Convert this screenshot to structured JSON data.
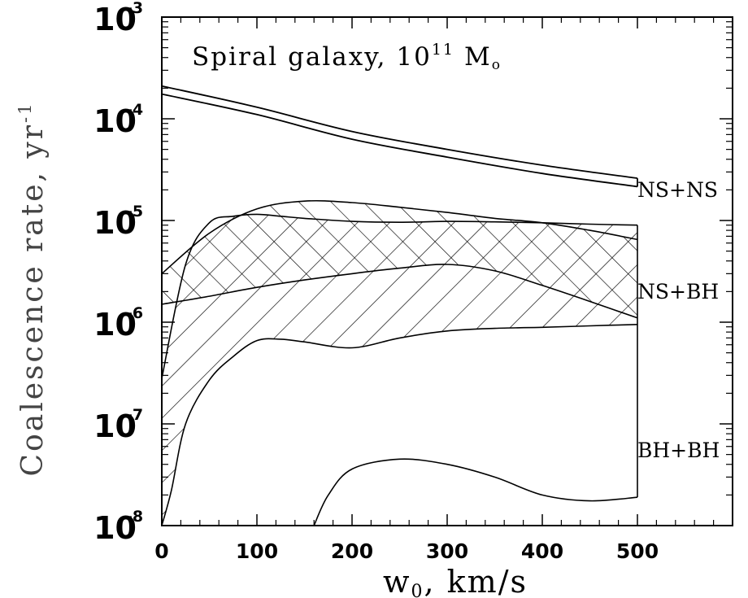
{
  "chart_data": {
    "type": "area",
    "title": "Spiral galaxy, 10",
    "title_sup": "11",
    "title_unit": "M",
    "title_unit_sub": "o",
    "xlabel": "w",
    "xlabel_sub": "0",
    "xlabel_unit": ",  km/s",
    "ylabel": "Coalescence rate,  yr",
    "ylabel_sup": "-1",
    "xlim": [
      0,
      600
    ],
    "ylim": [
      1e-08,
      0.001
    ],
    "yscale": "log",
    "grid": false,
    "xticks": [
      0,
      100,
      200,
      300,
      400,
      500
    ],
    "xtick_labels": [
      "0",
      "100",
      "200",
      "300",
      "400",
      "500"
    ],
    "yticks": [
      1e-08,
      1e-07,
      1e-06,
      1e-05,
      0.0001,
      0.001
    ],
    "ytick_base": "10",
    "ytick_exponents": [
      "-8",
      "-7",
      "-6",
      "-5",
      "-4",
      "-3"
    ],
    "series": [
      {
        "name": "NS+NS",
        "style": "band-outline",
        "upper": {
          "x": [
            0,
            100,
            200,
            300,
            400,
            500
          ],
          "y": [
            0.00021,
            0.00013,
            7.5e-05,
            5e-05,
            3.5e-05,
            2.6e-05
          ]
        },
        "lower": {
          "x": [
            0,
            100,
            200,
            300,
            400,
            500
          ],
          "y": [
            0.000175,
            0.00011,
            6.3e-05,
            4.2e-05,
            2.9e-05,
            2.15e-05
          ]
        }
      },
      {
        "name": "NS+BH",
        "style": "crosshatch",
        "upper": {
          "x": [
            0,
            50,
            100,
            150,
            200,
            250,
            300,
            350,
            400,
            450,
            500
          ],
          "y": [
            3e-06,
            7.5e-06,
            1.3e-05,
            1.55e-05,
            1.5e-05,
            1.35e-05,
            1.2e-05,
            1.05e-05,
            9.5e-06,
            8e-06,
            6.5e-06
          ]
        },
        "lower": {
          "x": [
            0,
            50,
            100,
            150,
            200,
            250,
            300,
            350,
            400,
            450,
            500
          ],
          "y": [
            1.5e-06,
            1.8e-06,
            2.2e-06,
            2.6e-06,
            3e-06,
            3.4e-06,
            3.7e-06,
            3.2e-06,
            2.3e-06,
            1.6e-06,
            1.1e-06
          ]
        }
      },
      {
        "name": "BH+BH",
        "style": "hatch",
        "upper": {
          "x": [
            0,
            25,
            50,
            75,
            100,
            125,
            150,
            200,
            250,
            300,
            350,
            400,
            450,
            500
          ],
          "y": [
            2.8e-07,
            3.7e-06,
            9.5e-06,
            1.1e-05,
            1.15e-05,
            1.1e-05,
            1.05e-05,
            9.8e-06,
            9.6e-06,
            9.8e-06,
            9.7e-06,
            9.5e-06,
            9.2e-06,
            9e-06
          ]
        },
        "lower": {
          "x": [
            0,
            10,
            25,
            50,
            75,
            100,
            125,
            150,
            200,
            250,
            300,
            350,
            400,
            450,
            500
          ],
          "y": [
            1e-08,
            2.2e-08,
            1e-07,
            2.7e-07,
            4.6e-07,
            6.6e-07,
            6.8e-07,
            6.4e-07,
            5.6e-07,
            7e-07,
            8.2e-07,
            8.7e-07,
            8.9e-07,
            9.2e-07,
            9.5e-07
          ]
        },
        "inner_lower": {
          "x": [
            160,
            175,
            200,
            250,
            300,
            350,
            400,
            450,
            500
          ],
          "y": [
            1e-08,
            2e-08,
            3.6e-08,
            4.5e-08,
            4e-08,
            3e-08,
            2e-08,
            1.75e-08,
            1.9e-08
          ]
        }
      }
    ]
  }
}
